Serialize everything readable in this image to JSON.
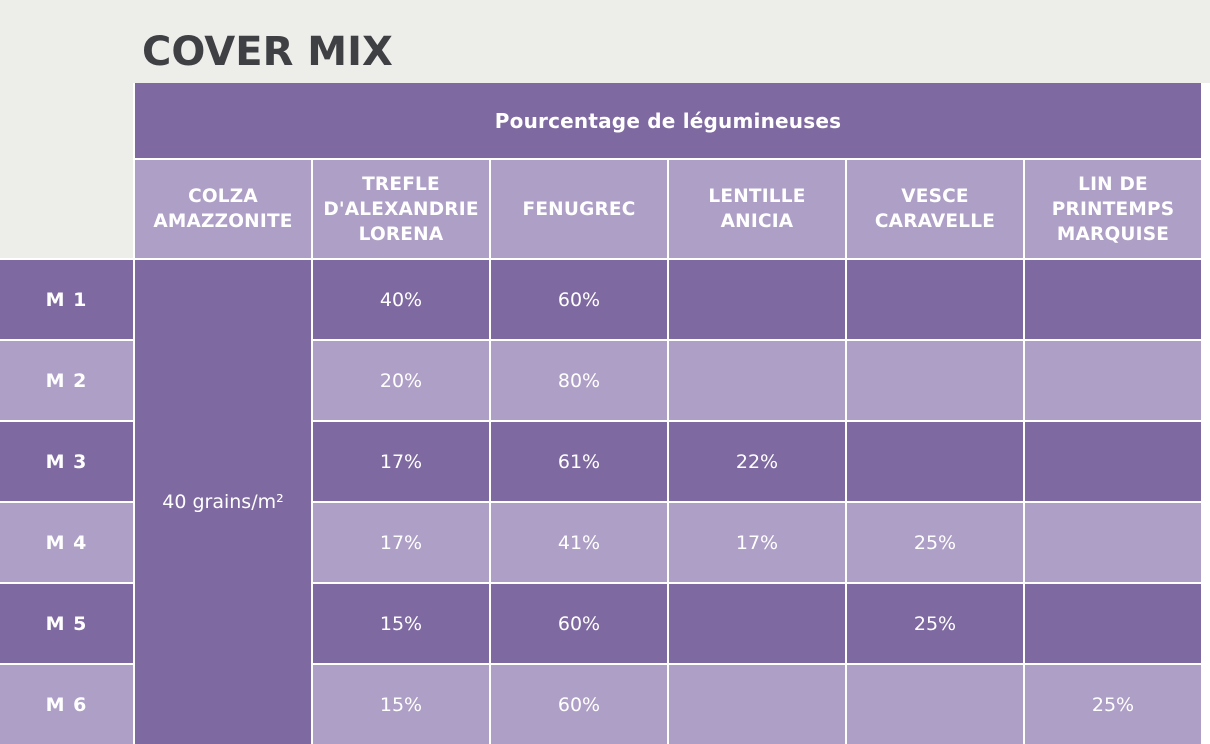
{
  "title": "COVER MIX",
  "colors": {
    "dark": "#7e69a0",
    "light": "#ae9fc6",
    "background": "#ededea",
    "title_text": "#3f4044"
  },
  "table": {
    "group_header": "Pourcentage de légumineuses",
    "columns": [
      "COLZA\nAMAZZONITE",
      "TREFLE\nD'ALEXANDRIE\nLORENA",
      "FENUGREC",
      "LENTILLE\nANICIA",
      "VESCE\nCARAVELLE",
      "LIN DE\nPRINTEMPS\nMARQUISE"
    ],
    "colza_value": "40 grains/m²",
    "rows": [
      {
        "label": "M 1",
        "values": [
          "40%",
          "60%",
          "",
          "",
          ""
        ]
      },
      {
        "label": "M 2",
        "values": [
          "20%",
          "80%",
          "",
          "",
          ""
        ]
      },
      {
        "label": "M 3",
        "values": [
          "17%",
          "61%",
          "22%",
          "",
          ""
        ]
      },
      {
        "label": "M 4",
        "values": [
          "17%",
          "41%",
          "17%",
          "25%",
          ""
        ]
      },
      {
        "label": "M 5",
        "values": [
          "15%",
          "60%",
          "",
          "25%",
          ""
        ]
      },
      {
        "label": "M 6",
        "values": [
          "15%",
          "60%",
          "",
          "",
          "25%"
        ]
      }
    ]
  }
}
